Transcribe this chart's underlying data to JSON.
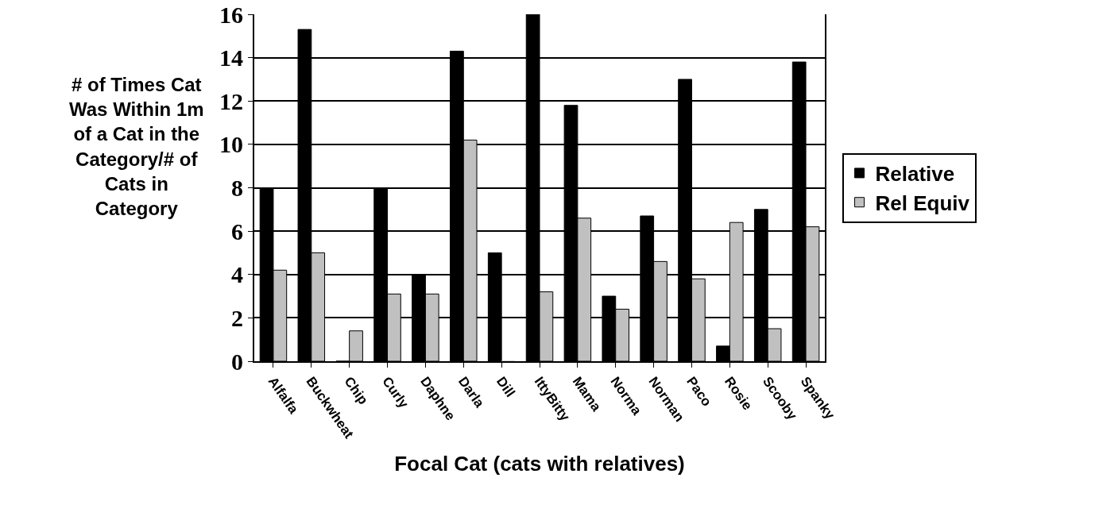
{
  "chart_data": {
    "type": "bar",
    "xlabel": "Focal Cat (cats with relatives)",
    "ylabel": "# of Times Cat Was Within 1m of a Cat in the Category/# of Cats in Category",
    "categories": [
      "Alfalfa",
      "Buckwheat",
      "Chip",
      "Curly",
      "Daphne",
      "Darla",
      "Dill",
      "IttyBitty",
      "Mama",
      "Norma",
      "Norman",
      "Paco",
      "Rosie",
      "Scooby",
      "Spanky"
    ],
    "series": [
      {
        "name": "Relative",
        "color": "#000000",
        "values": [
          8,
          15.3,
          0,
          8,
          4,
          14.3,
          5,
          16,
          11.8,
          3,
          6.7,
          13,
          0.7,
          7,
          13.8
        ]
      },
      {
        "name": "Rel Equiv",
        "color": "#c0c0c0",
        "values": [
          4.2,
          5,
          1.4,
          3.1,
          3.1,
          10.2,
          0,
          3.2,
          6.6,
          2.4,
          4.6,
          3.8,
          6.4,
          1.5,
          6.2
        ]
      }
    ],
    "ylim": [
      0,
      16
    ],
    "yticks": [
      0,
      2,
      4,
      6,
      8,
      10,
      12,
      14,
      16
    ],
    "grid": "y",
    "legend": "right"
  }
}
